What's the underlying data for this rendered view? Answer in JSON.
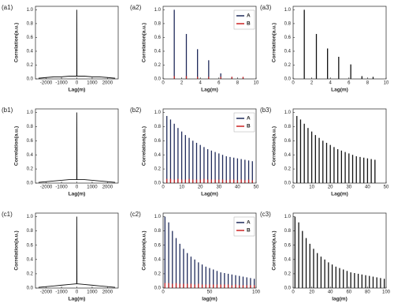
{
  "chart_data": [
    {
      "type": "line",
      "label": "(a1)",
      "xlabel": "Lag(m)",
      "ylabel": "Correlation(a.u.)",
      "x": [
        -2500,
        -2000,
        -1500,
        -1000,
        -500,
        -10,
        0,
        10,
        500,
        1000,
        1500,
        2000,
        2500
      ],
      "series": [
        {
          "color": "#111111",
          "values": [
            0.01,
            0.02,
            0.03,
            0.03,
            0.04,
            0.04,
            1,
            0.04,
            0.04,
            0.03,
            0.03,
            0.02,
            0.01
          ]
        }
      ],
      "xlim": [
        -2700,
        2700
      ],
      "xticks": [
        -2000,
        -1000,
        0,
        1000,
        2000
      ],
      "ylim": [
        0,
        1.05
      ],
      "yticks": [
        {
          "value": 0,
          "label": "0.0"
        },
        0.2,
        0.4,
        0.6,
        0.8,
        {
          "value": 1,
          "label": "1.0"
        }
      ]
    },
    {
      "type": "stem",
      "label": "(a2)",
      "xlabel": "Lag(m)",
      "ylabel": "Correlation(a.u.)",
      "x": [
        1.2,
        2.5,
        3.7,
        4.9,
        6.2,
        7.4,
        8.6
      ],
      "series": [
        {
          "name": "A",
          "color": "#1f2a5a",
          "values": [
            1,
            0.65,
            0.43,
            0.27,
            0.08,
            0.03,
            0.02
          ]
        },
        {
          "name": "B",
          "color": "#cc2222",
          "values": [
            0.04,
            0.04,
            0.03,
            0.03,
            0.03,
            0.03,
            0.03
          ]
        }
      ],
      "xlim": [
        0,
        10
      ],
      "xticks": [
        0,
        2,
        4,
        6,
        8,
        10
      ],
      "ylim": [
        0,
        1.05
      ],
      "yticks": [
        {
          "value": 0,
          "label": "0.0"
        },
        0.2,
        0.4,
        0.6,
        0.8,
        {
          "value": 1,
          "label": "1.0"
        }
      ]
    },
    {
      "type": "stem",
      "label": "(a3)",
      "xlabel": "Lag(m)",
      "ylabel": "Correlation(a.u.)",
      "x": [
        1.2,
        2.5,
        3.7,
        4.9,
        6.2,
        7.4,
        8.6
      ],
      "series": [
        {
          "color": "#111111",
          "values": [
            1,
            0.65,
            0.44,
            0.32,
            0.21,
            0.04,
            0.03
          ]
        }
      ],
      "xlim": [
        0,
        10
      ],
      "xticks": [
        0,
        2,
        4,
        6,
        8,
        10
      ],
      "ylim": [
        0,
        1.05
      ],
      "yticks": [
        {
          "value": 0,
          "label": "0.0"
        },
        0.2,
        0.4,
        0.6,
        0.8,
        {
          "value": 1,
          "label": "1.0"
        }
      ]
    },
    {
      "type": "line",
      "label": "(b1)",
      "xlabel": "Lag(m)",
      "ylabel": "Correlation(a.u.)",
      "x": [
        -2500,
        -2000,
        -1500,
        -1000,
        -500,
        -10,
        0,
        10,
        500,
        1000,
        1500,
        2000,
        2500
      ],
      "series": [
        {
          "color": "#111111",
          "values": [
            0.01,
            0.02,
            0.03,
            0.04,
            0.05,
            0.05,
            1,
            0.05,
            0.05,
            0.04,
            0.03,
            0.02,
            0.01
          ]
        }
      ],
      "xlim": [
        -2700,
        2700
      ],
      "xticks": [
        -2000,
        -1000,
        0,
        1000,
        2000
      ],
      "ylim": [
        0,
        1.05
      ],
      "yticks": [
        {
          "value": 0,
          "label": "0.0"
        },
        0.2,
        0.4,
        0.6,
        0.8,
        {
          "value": 1,
          "label": "1.0"
        }
      ]
    },
    {
      "type": "stem",
      "label": "(b2)",
      "xlabel": "Lag(m)",
      "ylabel": "Correlation(a.u.)",
      "x": [
        2,
        4,
        6,
        8,
        10,
        12,
        14,
        16,
        18,
        20,
        22,
        24,
        26,
        28,
        30,
        32,
        34,
        36,
        38,
        40,
        42,
        44,
        46,
        48
      ],
      "series": [
        {
          "name": "A",
          "color": "#1f2a5a",
          "values": [
            0.95,
            0.9,
            0.84,
            0.78,
            0.73,
            0.68,
            0.64,
            0.6,
            0.57,
            0.54,
            0.51,
            0.48,
            0.46,
            0.44,
            0.42,
            0.4,
            0.38,
            0.37,
            0.36,
            0.35,
            0.34,
            0.33,
            0.32,
            0.31
          ]
        },
        {
          "name": "B",
          "color": "#cc2222",
          "values": [
            0.06,
            0.06,
            0.05,
            0.06,
            0.05,
            0.05,
            0.06,
            0.05,
            0.05,
            0.05,
            0.06,
            0.05,
            0.05,
            0.05,
            0.05,
            0.05,
            0.04,
            0.05,
            0.05,
            0.04,
            0.05,
            0.04,
            0.05,
            0.04
          ]
        }
      ],
      "xlim": [
        0,
        50
      ],
      "xticks": [
        0,
        10,
        20,
        30,
        40,
        50
      ],
      "ylim": [
        0,
        1.05
      ],
      "yticks": [
        {
          "value": 0,
          "label": "0.0"
        },
        0.2,
        0.4,
        0.6,
        0.8,
        {
          "value": 1,
          "label": "1.0"
        }
      ]
    },
    {
      "type": "stem",
      "label": "(b3)",
      "xlabel": "Lag(m)",
      "ylabel": "Correlation(a.u.)",
      "x": [
        2,
        4,
        6,
        8,
        10,
        12,
        14,
        16,
        18,
        20,
        22,
        24,
        26,
        28,
        30,
        32,
        34,
        36,
        38,
        40,
        42,
        44
      ],
      "series": [
        {
          "color": "#111111",
          "values": [
            0.95,
            0.9,
            0.84,
            0.78,
            0.73,
            0.68,
            0.64,
            0.6,
            0.57,
            0.54,
            0.51,
            0.48,
            0.46,
            0.44,
            0.42,
            0.4,
            0.38,
            0.37,
            0.36,
            0.35,
            0.34,
            0.33
          ]
        }
      ],
      "xlim": [
        0,
        50
      ],
      "xticks": [
        0,
        10,
        20,
        30,
        40,
        50
      ],
      "ylim": [
        0,
        1.05
      ],
      "yticks": [
        {
          "value": 0,
          "label": "0.0"
        },
        0.2,
        0.4,
        0.6,
        0.8,
        {
          "value": 1,
          "label": "1.0"
        }
      ]
    },
    {
      "type": "line",
      "label": "(c1)",
      "xlabel": "Lag(m)",
      "ylabel": "Correlation(a.u.)",
      "x": [
        -2500,
        -2000,
        -1500,
        -1000,
        -500,
        -10,
        0,
        10,
        500,
        1000,
        1500,
        2000,
        2500
      ],
      "series": [
        {
          "color": "#111111",
          "values": [
            0.01,
            0.02,
            0.03,
            0.04,
            0.05,
            0.06,
            1,
            0.06,
            0.05,
            0.04,
            0.03,
            0.02,
            0.01
          ]
        }
      ],
      "xlim": [
        -2700,
        2700
      ],
      "xticks": [
        -2000,
        -1000,
        0,
        1000,
        2000
      ],
      "ylim": [
        0,
        1.05
      ],
      "yticks": [
        {
          "value": 0,
          "label": "0.0"
        },
        0.2,
        0.4,
        0.6,
        0.8,
        {
          "value": 1,
          "label": "1.0"
        }
      ]
    },
    {
      "type": "stem",
      "label": "(c2)",
      "xlabel": "lag(m)",
      "ylabel": "Correlation(a.u.)",
      "x": [
        2,
        6,
        10,
        14,
        18,
        22,
        26,
        30,
        34,
        38,
        42,
        46,
        50,
        54,
        58,
        62,
        66,
        70,
        74,
        78,
        82,
        86,
        90,
        94,
        98
      ],
      "series": [
        {
          "name": "A",
          "color": "#1f2a5a",
          "values": [
            1,
            0.92,
            0.8,
            0.7,
            0.62,
            0.55,
            0.49,
            0.44,
            0.4,
            0.36,
            0.33,
            0.3,
            0.28,
            0.26,
            0.24,
            0.22,
            0.21,
            0.2,
            0.19,
            0.18,
            0.17,
            0.16,
            0.15,
            0.14,
            0.13
          ]
        },
        {
          "name": "B",
          "color": "#cc2222",
          "values": [
            0.07,
            0.07,
            0.06,
            0.07,
            0.06,
            0.06,
            0.06,
            0.06,
            0.05,
            0.06,
            0.05,
            0.05,
            0.05,
            0.05,
            0.05,
            0.05,
            0.05,
            0.05,
            0.04,
            0.05,
            0.04,
            0.04,
            0.04,
            0.04,
            0.04
          ]
        }
      ],
      "xlim": [
        0,
        100
      ],
      "xticks": [
        0,
        50,
        100
      ],
      "ylim": [
        0,
        1.05
      ],
      "yticks": [
        {
          "value": 0,
          "label": "0.0"
        },
        0.2,
        0.4,
        0.6,
        0.8,
        {
          "value": 1,
          "label": "1.0"
        }
      ]
    },
    {
      "type": "stem",
      "label": "(c3)",
      "xlabel": "lag(m)",
      "ylabel": "Correlation(a.u.)",
      "x": [
        2,
        6,
        10,
        14,
        18,
        22,
        26,
        30,
        34,
        38,
        42,
        46,
        50,
        54,
        58,
        62,
        66,
        70,
        74,
        78,
        82,
        86,
        90,
        94,
        98
      ],
      "series": [
        {
          "color": "#111111",
          "values": [
            1,
            0.92,
            0.8,
            0.7,
            0.62,
            0.55,
            0.49,
            0.44,
            0.4,
            0.36,
            0.33,
            0.3,
            0.28,
            0.26,
            0.24,
            0.22,
            0.21,
            0.2,
            0.19,
            0.18,
            0.17,
            0.16,
            0.15,
            0.14,
            0.13
          ]
        }
      ],
      "xlim": [
        0,
        100
      ],
      "xticks": [
        0,
        20,
        40,
        60,
        80,
        100
      ],
      "ylim": [
        0,
        1.05
      ],
      "yticks": [
        {
          "value": 0,
          "label": "0.0"
        },
        0.2,
        0.4,
        0.6,
        0.8,
        {
          "value": 1,
          "label": "1.0"
        }
      ]
    }
  ]
}
